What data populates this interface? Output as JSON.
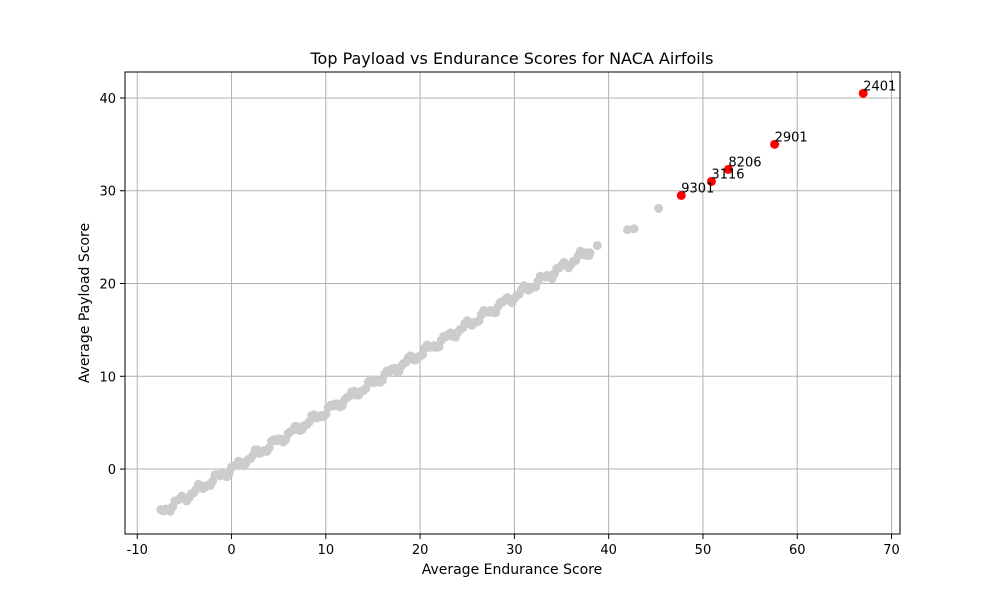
{
  "chart_data": {
    "type": "scatter",
    "title": "Top Payload vs Endurance Scores for NACA Airfoils",
    "xlabel": "Average Endurance Score",
    "ylabel": "Average Payload Score",
    "xlim": [
      -11.3,
      70.9
    ],
    "ylim": [
      -7.0,
      42.8
    ],
    "xticks": [
      -10,
      0,
      10,
      20,
      30,
      40,
      50,
      60,
      70
    ],
    "yticks": [
      0,
      10,
      20,
      30,
      40
    ],
    "grid": true,
    "colors": {
      "background": "#cccccc",
      "highlight": "#ff0000",
      "grid": "#b0b0b0"
    },
    "background_points": {
      "dense_range": [
        -7.5,
        38.0
      ],
      "dense_step": 0.25,
      "dense_relation": "y = 0.62 * x",
      "extra": [
        [
          38.8,
          24.1
        ],
        [
          42.0,
          25.8
        ],
        [
          42.7,
          25.9
        ],
        [
          45.3,
          28.1
        ],
        [
          37.9,
          23.0
        ],
        [
          37.5,
          23.3
        ]
      ]
    },
    "highlighted": [
      {
        "label": "2401",
        "x": 67.0,
        "y": 40.5
      },
      {
        "label": "2901",
        "x": 57.6,
        "y": 35.0
      },
      {
        "label": "8206",
        "x": 52.7,
        "y": 32.3
      },
      {
        "label": "3116",
        "x": 50.9,
        "y": 31.0
      },
      {
        "label": "9301",
        "x": 47.7,
        "y": 29.5
      }
    ]
  }
}
